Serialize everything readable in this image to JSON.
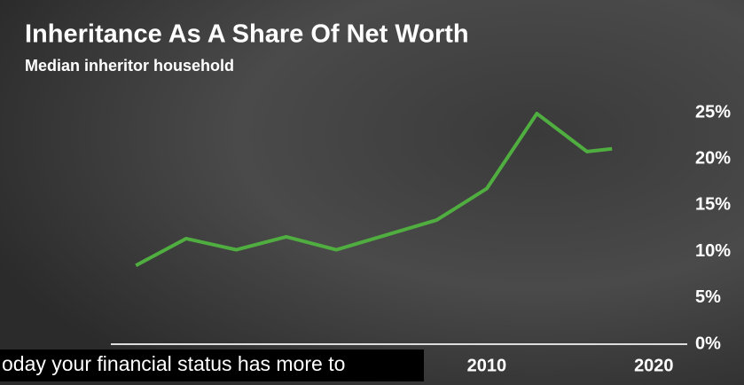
{
  "chart_data": {
    "type": "line",
    "title": "Inheritance As A Share Of Net Worth",
    "subtitle": "Median inheritor household",
    "x": [
      1989,
      1992,
      1995,
      1998,
      2001,
      2004,
      2007,
      2010,
      2013,
      2016,
      2017.5
    ],
    "values": [
      8.5,
      11.4,
      10.2,
      11.6,
      10.2,
      11.8,
      13.4,
      16.8,
      24.9,
      20.8,
      21.1
    ],
    "color": "#4fae3f",
    "xlim": [
      1987.5,
      2022
    ],
    "xticks": [
      2010,
      2020
    ],
    "ylim": [
      0,
      25
    ],
    "yticks": [
      {
        "value": 0,
        "label": "0%"
      },
      {
        "value": 5,
        "label": "5%"
      },
      {
        "value": 10,
        "label": "10%"
      },
      {
        "value": 15,
        "label": "15%"
      },
      {
        "value": 20,
        "label": "20%"
      },
      {
        "value": 25,
        "label": "25%"
      }
    ]
  },
  "caption": "oday your financial status has more to"
}
